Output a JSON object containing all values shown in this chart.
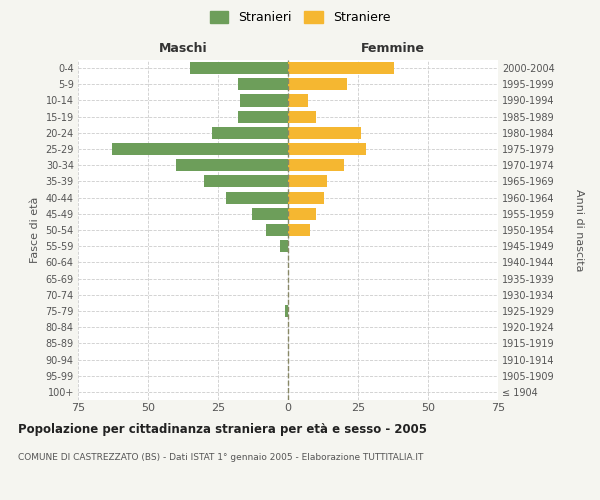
{
  "age_groups": [
    "100+",
    "95-99",
    "90-94",
    "85-89",
    "80-84",
    "75-79",
    "70-74",
    "65-69",
    "60-64",
    "55-59",
    "50-54",
    "45-49",
    "40-44",
    "35-39",
    "30-34",
    "25-29",
    "20-24",
    "15-19",
    "10-14",
    "5-9",
    "0-4"
  ],
  "birth_years": [
    "≤ 1904",
    "1905-1909",
    "1910-1914",
    "1915-1919",
    "1920-1924",
    "1925-1929",
    "1930-1934",
    "1935-1939",
    "1940-1944",
    "1945-1949",
    "1950-1954",
    "1955-1959",
    "1960-1964",
    "1965-1969",
    "1970-1974",
    "1975-1979",
    "1980-1984",
    "1985-1989",
    "1990-1994",
    "1995-1999",
    "2000-2004"
  ],
  "males": [
    0,
    0,
    0,
    0,
    0,
    1,
    0,
    0,
    0,
    3,
    8,
    13,
    22,
    30,
    40,
    63,
    27,
    18,
    17,
    18,
    35
  ],
  "females": [
    0,
    0,
    0,
    0,
    0,
    0,
    0,
    0,
    0,
    0,
    8,
    10,
    13,
    14,
    20,
    28,
    26,
    10,
    7,
    21,
    38
  ],
  "male_color": "#6d9e5a",
  "female_color": "#f5b731",
  "male_label": "Stranieri",
  "female_label": "Straniere",
  "title_maschi": "Maschi",
  "title_femmine": "Femmine",
  "ylabel_left": "Fasce di età",
  "ylabel_right": "Anni di nascita",
  "xlim": 75,
  "title": "Popolazione per cittadinanza straniera per età e sesso - 2005",
  "subtitle": "COMUNE DI CASTREZZATO (BS) - Dati ISTAT 1° gennaio 2005 - Elaborazione TUTTITALIA.IT",
  "bg_color": "#f5f5f0",
  "axis_bg_color": "#ffffff",
  "grid_color": "#cccccc",
  "text_color": "#555555"
}
